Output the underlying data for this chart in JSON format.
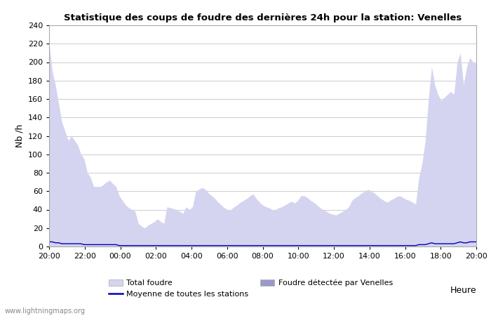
{
  "title": "Statistique des coups de foudre des dernières 24h pour la station: Venelles",
  "xlabel": "Heure",
  "ylabel": "Nb /h",
  "watermark": "www.lightningmaps.org",
  "ylim": [
    0,
    240
  ],
  "yticks": [
    0,
    20,
    40,
    60,
    80,
    100,
    120,
    140,
    160,
    180,
    200,
    220,
    240
  ],
  "xtick_labels": [
    "20:00",
    "22:00",
    "00:00",
    "02:00",
    "04:00",
    "06:00",
    "08:00",
    "10:00",
    "12:00",
    "14:00",
    "16:00",
    "18:00",
    "20:00"
  ],
  "total_foudre_color": "#d4d4f0",
  "venelles_color": "#9999cc",
  "moyenne_color": "#0000bb",
  "background_color": "#ffffff",
  "grid_color": "#cccccc",
  "total_foudre": [
    220,
    190,
    175,
    155,
    135,
    125,
    115,
    120,
    115,
    110,
    100,
    95,
    80,
    75,
    65,
    65,
    65,
    67,
    70,
    72,
    68,
    65,
    55,
    50,
    45,
    42,
    40,
    38,
    25,
    22,
    20,
    23,
    25,
    27,
    30,
    27,
    25,
    43,
    42,
    41,
    40,
    38,
    36,
    43,
    40,
    43,
    60,
    62,
    64,
    62,
    58,
    55,
    52,
    48,
    45,
    42,
    40,
    40,
    43,
    45,
    48,
    50,
    52,
    55,
    57,
    52,
    48,
    45,
    43,
    42,
    40,
    40,
    42,
    43,
    45,
    47,
    49,
    47,
    50,
    55,
    55,
    53,
    50,
    48,
    45,
    42,
    40,
    38,
    36,
    35,
    34,
    36,
    38,
    40,
    43,
    50,
    53,
    55,
    58,
    60,
    62,
    60,
    58,
    55,
    52,
    50,
    48,
    50,
    52,
    54,
    55,
    53,
    51,
    50,
    48,
    46,
    75,
    90,
    115,
    160,
    195,
    175,
    165,
    158,
    162,
    165,
    168,
    165,
    200,
    210,
    175,
    195,
    205,
    200,
    198
  ],
  "venelles": [
    0,
    0,
    0,
    0,
    0,
    0,
    0,
    0,
    0,
    0,
    0,
    0,
    0,
    0,
    0,
    0,
    0,
    0,
    0,
    0,
    0,
    0,
    0,
    0,
    0,
    0,
    0,
    0,
    0,
    0,
    0,
    0,
    0,
    0,
    0,
    0,
    0,
    0,
    0,
    0,
    0,
    0,
    0,
    0,
    0,
    0,
    0,
    0,
    0,
    0,
    0,
    0,
    0,
    0,
    0,
    0,
    0,
    0,
    0,
    0,
    0,
    0,
    0,
    0,
    0,
    0,
    0,
    0,
    0,
    0,
    0,
    0,
    0,
    0,
    0,
    0,
    0,
    0,
    0,
    0,
    0,
    0,
    0,
    0,
    0,
    0,
    0,
    0,
    0,
    0,
    0,
    0,
    0,
    0,
    0,
    0,
    0,
    0,
    0,
    0,
    0,
    0,
    0,
    0,
    0,
    0,
    0,
    0,
    0,
    0,
    0,
    0,
    0,
    0,
    0,
    0,
    0,
    0,
    0,
    0,
    0,
    0,
    0,
    0,
    0,
    0,
    0,
    0,
    0,
    0,
    0,
    0,
    0,
    0,
    0
  ],
  "moyenne": [
    5,
    5,
    4,
    4,
    3,
    3,
    3,
    3,
    3,
    3,
    3,
    2,
    2,
    2,
    2,
    2,
    2,
    2,
    2,
    2,
    2,
    2,
    1,
    1,
    1,
    1,
    1,
    1,
    1,
    1,
    1,
    1,
    1,
    1,
    1,
    1,
    1,
    1,
    1,
    1,
    1,
    1,
    1,
    1,
    1,
    1,
    1,
    1,
    1,
    1,
    1,
    1,
    1,
    1,
    1,
    1,
    1,
    1,
    1,
    1,
    1,
    1,
    1,
    1,
    1,
    1,
    1,
    1,
    1,
    1,
    1,
    1,
    1,
    1,
    1,
    1,
    1,
    1,
    1,
    1,
    1,
    1,
    1,
    1,
    1,
    1,
    1,
    1,
    1,
    1,
    1,
    1,
    1,
    1,
    1,
    1,
    1,
    1,
    1,
    1,
    1,
    1,
    1,
    1,
    1,
    1,
    1,
    1,
    1,
    1,
    1,
    1,
    1,
    1,
    1,
    1,
    2,
    2,
    2,
    3,
    4,
    3,
    3,
    3,
    3,
    3,
    3,
    3,
    4,
    5,
    4,
    4,
    5,
    5,
    5
  ],
  "n_points": 135,
  "legend": {
    "total_foudre_label": "Total foudre",
    "venelles_label": "Foudre détectée par Venelles",
    "moyenne_label": "Moyenne de toutes les stations"
  }
}
